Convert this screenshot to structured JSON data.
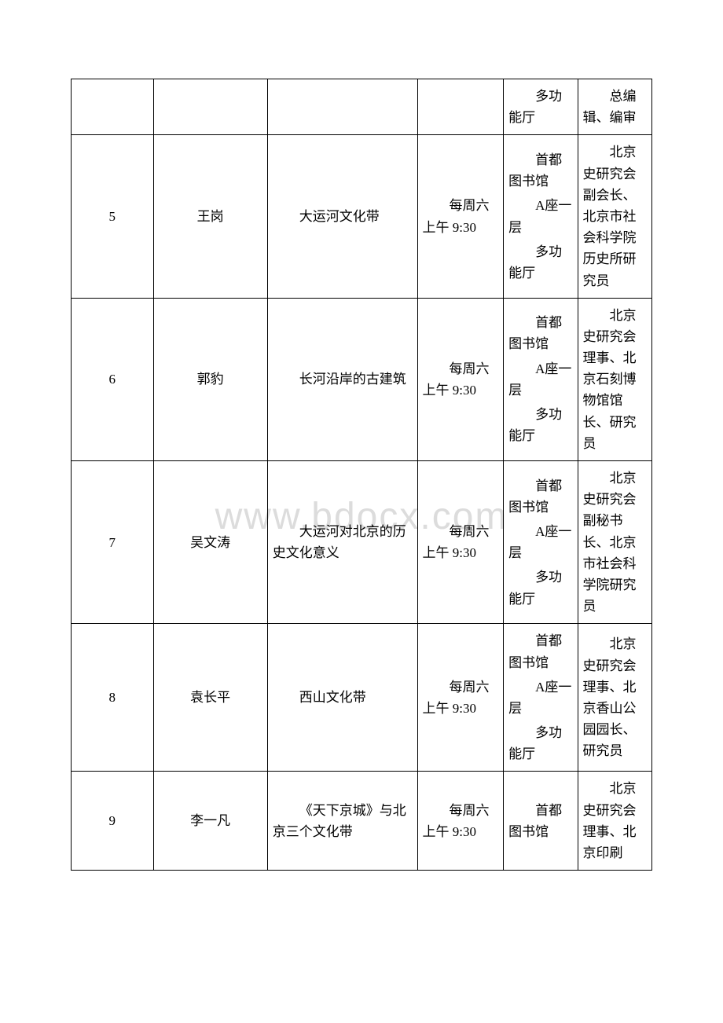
{
  "watermark": "www.bdocx.com",
  "rows": [
    {
      "num": "",
      "name": "",
      "topic": "",
      "time": "",
      "loc1": "多功能厅",
      "loc2": "",
      "loc3": "",
      "title": "总编辑、编审",
      "partial": true
    },
    {
      "num": "5",
      "name": "王岗",
      "topic": "大运河文化带",
      "time": "每周六上午 9:30",
      "loc1": "首都图书馆",
      "loc2": "A座一层",
      "loc3": "多功能厅",
      "title": "北京史研究会副会长、北京市社会科学院历史所研究员"
    },
    {
      "num": "6",
      "name": "郭豹",
      "topic": "长河沿岸的古建筑",
      "time": "每周六上午 9:30",
      "loc1": "首都图书馆",
      "loc2": "A座一层",
      "loc3": "多功能厅",
      "title": "北京史研究会理事、北京石刻博物馆馆长、研究员"
    },
    {
      "num": "7",
      "name": "吴文涛",
      "topic": "大运河对北京的历史文化意义",
      "time": "每周六上午 9:30",
      "loc1": "首都图书馆",
      "loc2": "A座一层",
      "loc3": "多功能厅",
      "title": "北京史研究会副秘书长、北京市社会科学院研究员"
    },
    {
      "num": "8",
      "name": "袁长平",
      "topic": "西山文化带",
      "time": "每周六上午 9:30",
      "loc1": "首都图书馆",
      "loc2": "A座一层",
      "loc3": "多功能厅",
      "title": "北京史研究会理事、北京香山公园园长、研究员"
    },
    {
      "num": "9",
      "name": "李一凡",
      "topic": "《天下京城》与北京三个文化带",
      "time": "每周六上午 9:30",
      "loc1": "首都图书馆",
      "loc2": "",
      "loc3": "",
      "title": "北京史研究会理事、北京印刷",
      "lastPartial": true
    }
  ]
}
